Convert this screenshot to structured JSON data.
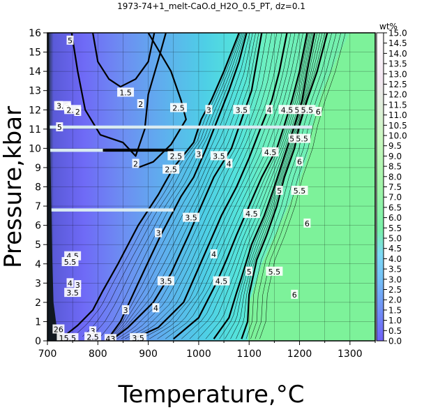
{
  "chart_data": {
    "type": "heatmap",
    "title": "1973-74+1_melt-CaO.d_H2O_0.5_PT, dz=0.1",
    "xlabel": "Temperature,°C",
    "ylabel": "Pressure,kbar",
    "xlim": [
      700,
      1350
    ],
    "ylim": [
      0,
      16
    ],
    "x_ticks": [
      "700",
      "800",
      "900",
      "1000",
      "1100",
      "1200",
      "1300"
    ],
    "y_ticks": [
      "0",
      "1",
      "2",
      "3",
      "4",
      "5",
      "6",
      "7",
      "8",
      "9",
      "10",
      "11",
      "12",
      "13",
      "14",
      "15",
      "16"
    ],
    "grid": true,
    "colorbar": {
      "title": "wt%",
      "range": [
        0,
        15
      ],
      "ticks": [
        "0.0",
        "0.5",
        "1.0",
        "1.5",
        "2.0",
        "2.5",
        "3.0",
        "3.5",
        "4.0",
        "4.5",
        "5.0",
        "5.5",
        "6.0",
        "6.5",
        "7.0",
        "7.5",
        "8.0",
        "8.5",
        "9.0",
        "9.5",
        "10.0",
        "10.5",
        "11.0",
        "11.5",
        "12.0",
        "12.5",
        "13.0",
        "13.5",
        "14.0",
        "14.5",
        "15.0"
      ],
      "colors": [
        "#6f60f7",
        "#7dd8f5",
        "#78f0a8",
        "#c8f8c0",
        "#f4e6f2",
        "#ffffff"
      ]
    },
    "background_color": "#7df29a",
    "isolines": [
      {
        "level": "1.5",
        "points": [
          [
            790,
            16
          ],
          [
            800,
            14.5
          ],
          [
            822,
            13.6
          ],
          [
            845,
            13.2
          ],
          [
            875,
            13.6
          ],
          [
            900,
            14.5
          ],
          [
            912,
            16
          ]
        ]
      },
      {
        "level": "2",
        "points": [
          [
            748,
            16
          ],
          [
            760,
            14
          ],
          [
            775,
            12
          ],
          [
            805,
            10.7
          ],
          [
            850,
            10.3
          ],
          [
            875,
            9.6
          ],
          [
            893,
            11
          ],
          [
            900,
            12.8
          ],
          [
            920,
            14.6
          ],
          [
            935,
            16
          ]
        ]
      },
      {
        "level": "2.5",
        "points": [
          [
            900,
            16
          ],
          [
            945,
            14
          ],
          [
            965,
            12.5
          ],
          [
            975,
            11.5
          ],
          [
            945,
            10.2
          ],
          [
            910,
            9.3
          ],
          [
            880,
            9.0
          ]
        ]
      },
      {
        "level": "3",
        "points": [
          [
            736,
            0.3
          ],
          [
            760,
            0.8
          ],
          [
            790,
            1.6
          ],
          [
            810,
            2.6
          ],
          [
            840,
            4
          ],
          [
            880,
            6
          ],
          [
            920,
            7.6
          ],
          [
            950,
            9
          ],
          [
            990,
            10.3
          ],
          [
            1005,
            11.5
          ],
          [
            1025,
            12.5
          ],
          [
            1050,
            14
          ],
          [
            1080,
            16
          ]
        ]
      },
      {
        "level": "3.5",
        "points": [
          [
            820,
            0.1
          ],
          [
            845,
            1
          ],
          [
            880,
            3
          ],
          [
            925,
            5.5
          ],
          [
            965,
            7.5
          ],
          [
            990,
            8.5
          ],
          [
            1015,
            10
          ],
          [
            1030,
            11
          ],
          [
            1060,
            13
          ],
          [
            1080,
            14.5
          ],
          [
            1095,
            16
          ]
        ]
      },
      {
        "level": "4",
        "points": [
          [
            830,
            0.1
          ],
          [
            860,
            0.7
          ],
          [
            910,
            2
          ],
          [
            945,
            3.5
          ],
          [
            980,
            5.5
          ],
          [
            1005,
            7
          ],
          [
            1030,
            8.5
          ],
          [
            1065,
            10
          ],
          [
            1085,
            11.5
          ],
          [
            1105,
            13
          ],
          [
            1125,
            16
          ]
        ]
      },
      {
        "level": "4.5",
        "points": [
          [
            870,
            0.1
          ],
          [
            920,
            0.7
          ],
          [
            970,
            2
          ],
          [
            995,
            3.5
          ],
          [
            1020,
            5
          ],
          [
            1045,
            6.5
          ],
          [
            1075,
            8
          ],
          [
            1100,
            9.5
          ],
          [
            1125,
            11.2
          ],
          [
            1145,
            12.5
          ],
          [
            1160,
            14
          ],
          [
            1175,
            16
          ]
        ]
      },
      {
        "level": "5",
        "points": [
          [
            950,
            0.1
          ],
          [
            1000,
            1.2
          ],
          [
            1035,
            3
          ],
          [
            1055,
            4.2
          ],
          [
            1075,
            5.5
          ],
          [
            1100,
            7
          ],
          [
            1125,
            8.5
          ],
          [
            1155,
            10
          ],
          [
            1170,
            11.2
          ],
          [
            1185,
            12.5
          ],
          [
            1200,
            14
          ],
          [
            1215,
            16
          ]
        ]
      },
      {
        "level": "5.5",
        "points": [
          [
            1030,
            0.1
          ],
          [
            1060,
            1.2
          ],
          [
            1075,
            2.5
          ],
          [
            1085,
            3.3
          ],
          [
            1105,
            5
          ],
          [
            1130,
            6.5
          ],
          [
            1150,
            8
          ],
          [
            1175,
            10
          ],
          [
            1190,
            11.2
          ],
          [
            1205,
            12.5
          ],
          [
            1215,
            14
          ],
          [
            1230,
            16
          ]
        ]
      },
      {
        "level": "6",
        "points": [
          [
            1085,
            0.1
          ],
          [
            1097,
            1
          ],
          [
            1100,
            2.4
          ],
          [
            1115,
            4.2
          ],
          [
            1135,
            5.5
          ],
          [
            1155,
            7
          ],
          [
            1170,
            8.5
          ],
          [
            1190,
            10
          ],
          [
            1200,
            11.2
          ],
          [
            1215,
            12.5
          ],
          [
            1235,
            14
          ],
          [
            1255,
            16
          ]
        ]
      }
    ],
    "solidus": {
      "label": "",
      "points": [
        [
          1098,
          0
        ],
        [
          1100,
          2
        ],
        [
          1125,
          4
        ],
        [
          1160,
          6
        ],
        [
          1195,
          8
        ],
        [
          1215,
          9.5
        ],
        [
          1225,
          11.1
        ],
        [
          1245,
          13
        ],
        [
          1280,
          15
        ],
        [
          1300,
          16
        ]
      ]
    },
    "contour_labels": [
      {
        "text": "5",
        "x": 745,
        "y": 15.6
      },
      {
        "text": "1.5",
        "x": 855,
        "y": 12.9
      },
      {
        "text": "2",
        "x": 885,
        "y": 12.3
      },
      {
        "text": "2.5",
        "x": 960,
        "y": 12.1
      },
      {
        "text": "3",
        "x": 1020,
        "y": 12.0
      },
      {
        "text": "3.5",
        "x": 1085,
        "y": 12.0
      },
      {
        "text": "4",
        "x": 1140,
        "y": 12.0
      },
      {
        "text": "4.5",
        "x": 1175,
        "y": 12.0
      },
      {
        "text": "5",
        "x": 1195,
        "y": 12.0
      },
      {
        "text": "5.5",
        "x": 1215,
        "y": 12.0
      },
      {
        "text": "6",
        "x": 1237,
        "y": 11.9
      },
      {
        "text": "5",
        "x": 1185,
        "y": 10.5
      },
      {
        "text": "5.5",
        "x": 1205,
        "y": 10.5
      },
      {
        "text": "4.5",
        "x": 1142,
        "y": 9.8
      },
      {
        "text": "6",
        "x": 1200,
        "y": 9.3
      },
      {
        "text": "3",
        "x": 1000,
        "y": 9.7
      },
      {
        "text": "3.5",
        "x": 1040,
        "y": 9.6
      },
      {
        "text": "2.5",
        "x": 955,
        "y": 9.6
      },
      {
        "text": "2.5",
        "x": 945,
        "y": 8.9
      },
      {
        "text": "2",
        "x": 875,
        "y": 9.2
      },
      {
        "text": "4",
        "x": 1060,
        "y": 9.2
      },
      {
        "text": "5",
        "x": 1160,
        "y": 7.8
      },
      {
        "text": "5.5",
        "x": 1200,
        "y": 7.8
      },
      {
        "text": "4.5",
        "x": 1105,
        "y": 6.6
      },
      {
        "text": "3.5",
        "x": 985,
        "y": 6.4
      },
      {
        "text": "6",
        "x": 1215,
        "y": 6.1
      },
      {
        "text": "3",
        "x": 920,
        "y": 5.6
      },
      {
        "text": "4",
        "x": 1030,
        "y": 4.5
      },
      {
        "text": "5",
        "x": 1100,
        "y": 3.6
      },
      {
        "text": "5.5",
        "x": 1150,
        "y": 3.6
      },
      {
        "text": "4.5",
        "x": 1045,
        "y": 3.1
      },
      {
        "text": "3.5",
        "x": 935,
        "y": 3.1
      },
      {
        "text": "6",
        "x": 1190,
        "y": 2.4
      },
      {
        "text": "4",
        "x": 915,
        "y": 1.7
      },
      {
        "text": "3",
        "x": 855,
        "y": 1.6
      },
      {
        "text": "3.5",
        "x": 880,
        "y": 0.15
      },
      {
        "text": "3",
        "x": 760,
        "y": 2.9
      },
      {
        "text": "3.5",
        "x": 750,
        "y": 2.5
      },
      {
        "text": "4",
        "x": 745,
        "y": 3.0
      },
      {
        "text": "3",
        "x": 790,
        "y": 0.5
      },
      {
        "text": "2.5",
        "x": 790,
        "y": 0.2
      },
      {
        "text": "43",
        "x": 825,
        "y": 0.1
      },
      {
        "text": "26",
        "x": 722,
        "y": 0.6
      },
      {
        "text": "15.5",
        "x": 740,
        "y": 0.15
      },
      {
        "text": "4.5",
        "x": 750,
        "y": 4.4
      },
      {
        "text": "5.5",
        "x": 745,
        "y": 4.1
      },
      {
        "text": "5",
        "x": 724,
        "y": 11.1
      },
      {
        "text": "5",
        "x": 724,
        "y": 12.2
      },
      {
        "text": "3.5",
        "x": 730,
        "y": 12.2
      },
      {
        "text": "3",
        "x": 740,
        "y": 12.1
      },
      {
        "text": "2.5",
        "x": 750,
        "y": 12.0
      },
      {
        "text": "2",
        "x": 760,
        "y": 11.9
      }
    ],
    "horizontal_bands": [
      {
        "p": 11.1,
        "x_from": 700,
        "x_to": 1225
      },
      {
        "p": 9.9,
        "x_from": 700,
        "x_to": 815
      },
      {
        "p": 6.8,
        "x_from": 700,
        "x_to": 950
      }
    ],
    "bold_segment": {
      "p": 9.9,
      "x_from": 810,
      "x_to": 950
    }
  }
}
